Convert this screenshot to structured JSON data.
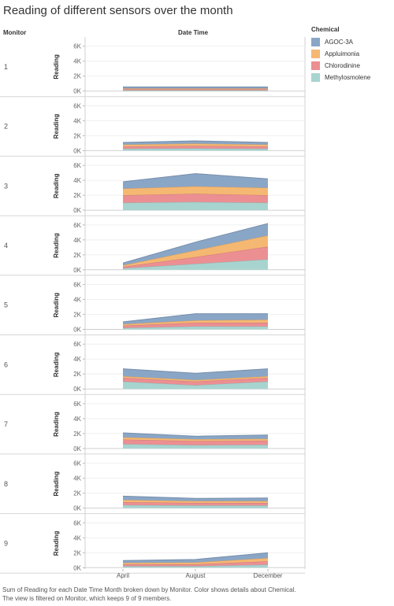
{
  "title": "Reading of different sensors over the month",
  "headers": {
    "monitor": "Monitor",
    "datetime": "Date Time"
  },
  "legend": {
    "title": "Chemical",
    "items": [
      {
        "label": "AGOC-3A",
        "color": "#8aa6c7"
      },
      {
        "label": "Appluimonia",
        "color": "#f5b872"
      },
      {
        "label": "Chlorodinine",
        "color": "#ec8f92"
      },
      {
        "label": "Methylosmolene",
        "color": "#a8d4d0"
      }
    ]
  },
  "footer": "Sum of Reading for each Date Time Month broken down by Monitor.  Color shows details about Chemical. The view is filtered on Monitor, which keeps 9 of 9 members.",
  "chart_data": {
    "type": "area",
    "stacked": true,
    "x": [
      "April",
      "August",
      "December"
    ],
    "y_ticks": [
      "6K",
      "4K",
      "2K",
      "0K"
    ],
    "ylabel": "Reading",
    "ylim": [
      0,
      6500
    ],
    "stack_order": [
      "Methylosmolene",
      "Chlorodinine",
      "Appluimonia",
      "AGOC-3A"
    ],
    "panels": [
      {
        "monitor": "1",
        "series": {
          "Methylosmolene": [
            100,
            100,
            100
          ],
          "Chlorodinine": [
            150,
            150,
            150
          ],
          "Appluimonia": [
            100,
            100,
            100
          ],
          "AGOC-3A": [
            200,
            200,
            200
          ]
        }
      },
      {
        "monitor": "2",
        "series": {
          "Methylosmolene": [
            250,
            300,
            250
          ],
          "Chlorodinine": [
            300,
            350,
            300
          ],
          "Appluimonia": [
            250,
            300,
            250
          ],
          "AGOC-3A": [
            300,
            350,
            300
          ]
        }
      },
      {
        "monitor": "3",
        "series": {
          "Methylosmolene": [
            1000,
            1100,
            1000
          ],
          "Chlorodinine": [
            1000,
            1100,
            1000
          ],
          "Appluimonia": [
            900,
            1000,
            1000
          ],
          "AGOC-3A": [
            900,
            1700,
            1200
          ]
        }
      },
      {
        "monitor": "4",
        "series": {
          "Methylosmolene": [
            200,
            800,
            1400
          ],
          "Chlorodinine": [
            200,
            900,
            1700
          ],
          "Appluimonia": [
            200,
            900,
            1500
          ],
          "AGOC-3A": [
            300,
            1100,
            1600
          ]
        }
      },
      {
        "monitor": "5",
        "series": {
          "Methylosmolene": [
            200,
            400,
            400
          ],
          "Chlorodinine": [
            300,
            500,
            500
          ],
          "Appluimonia": [
            200,
            300,
            400
          ],
          "AGOC-3A": [
            300,
            900,
            800
          ]
        }
      },
      {
        "monitor": "6",
        "series": {
          "Methylosmolene": [
            1000,
            500,
            1000
          ],
          "Chlorodinine": [
            500,
            500,
            500
          ],
          "Appluimonia": [
            200,
            200,
            200
          ],
          "AGOC-3A": [
            1000,
            900,
            1000
          ]
        }
      },
      {
        "monitor": "7",
        "series": {
          "Methylosmolene": [
            600,
            450,
            500
          ],
          "Chlorodinine": [
            600,
            550,
            550
          ],
          "Appluimonia": [
            300,
            250,
            250
          ],
          "AGOC-3A": [
            600,
            400,
            500
          ]
        }
      },
      {
        "monitor": "8",
        "series": {
          "Methylosmolene": [
            400,
            350,
            350
          ],
          "Chlorodinine": [
            400,
            350,
            350
          ],
          "Appluimonia": [
            300,
            250,
            250
          ],
          "AGOC-3A": [
            500,
            350,
            400
          ]
        }
      },
      {
        "monitor": "9",
        "series": {
          "Methylosmolene": [
            200,
            200,
            400
          ],
          "Chlorodinine": [
            250,
            250,
            450
          ],
          "Appluimonia": [
            200,
            250,
            450
          ],
          "AGOC-3A": [
            300,
            400,
            700
          ]
        }
      }
    ]
  }
}
